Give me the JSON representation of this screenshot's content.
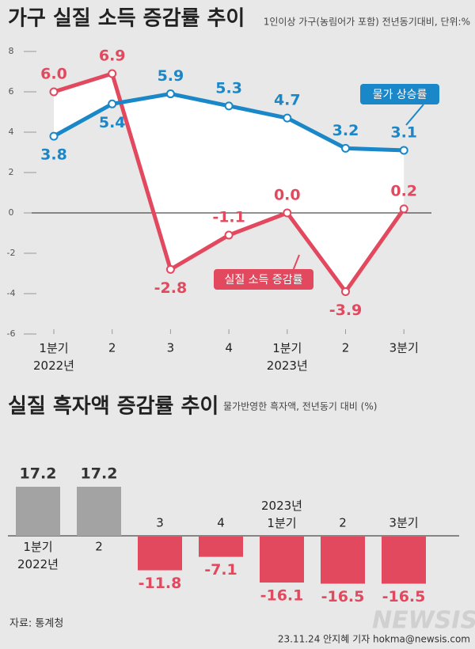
{
  "chart_data": [
    {
      "type": "line",
      "title": "가구 실질 소득 증감률 추이",
      "subtitle": "1인이상 가구(농림어가 포함) 전년동기대비, 단위:%",
      "categories": [
        "1분기\n2022년",
        "2",
        "3",
        "4",
        "1분기\n2023년",
        "2",
        "3분기"
      ],
      "series": [
        {
          "name": "실질 소득 증감률",
          "color": "#e2495e",
          "values": [
            6.0,
            6.9,
            -2.8,
            -1.1,
            0.0,
            -3.9,
            0.2
          ],
          "value_labels": [
            "6.0",
            "6.9",
            "-2.8",
            "-1.1",
            "0.0",
            "-3.9",
            "0.2"
          ]
        },
        {
          "name": "물가 상승률",
          "color": "#1a87c9",
          "values": [
            3.8,
            5.4,
            5.9,
            5.3,
            4.7,
            3.2,
            3.1
          ],
          "value_labels": [
            "3.8",
            "5.4",
            "5.9",
            "5.3",
            "4.7",
            "3.2",
            "3.1"
          ]
        }
      ],
      "ylim": [
        -6,
        8
      ],
      "yticks": [
        -6,
        -4,
        -2,
        0,
        2,
        4,
        6,
        8
      ]
    },
    {
      "type": "bar",
      "title": "실질 흑자액 증감률 추이",
      "subtitle": "물가반영한 흑자액, 전년동기 대비 (%)",
      "categories": [
        "1분기\n2022년",
        "2",
        "3",
        "4",
        "2023년\n1분기",
        "2",
        "3분기"
      ],
      "values": [
        17.2,
        17.2,
        -11.8,
        -7.1,
        -16.1,
        -16.5,
        -16.5
      ],
      "colors": [
        "#a3a3a3",
        "#a3a3a3",
        "#e2495e",
        "#e2495e",
        "#e2495e",
        "#e2495e",
        "#e2495e"
      ]
    }
  ],
  "source": "자료: 통계청",
  "credit": "23.11.24 안지혜 기자 hokma@newsis.com",
  "watermark": "NEWSIS"
}
